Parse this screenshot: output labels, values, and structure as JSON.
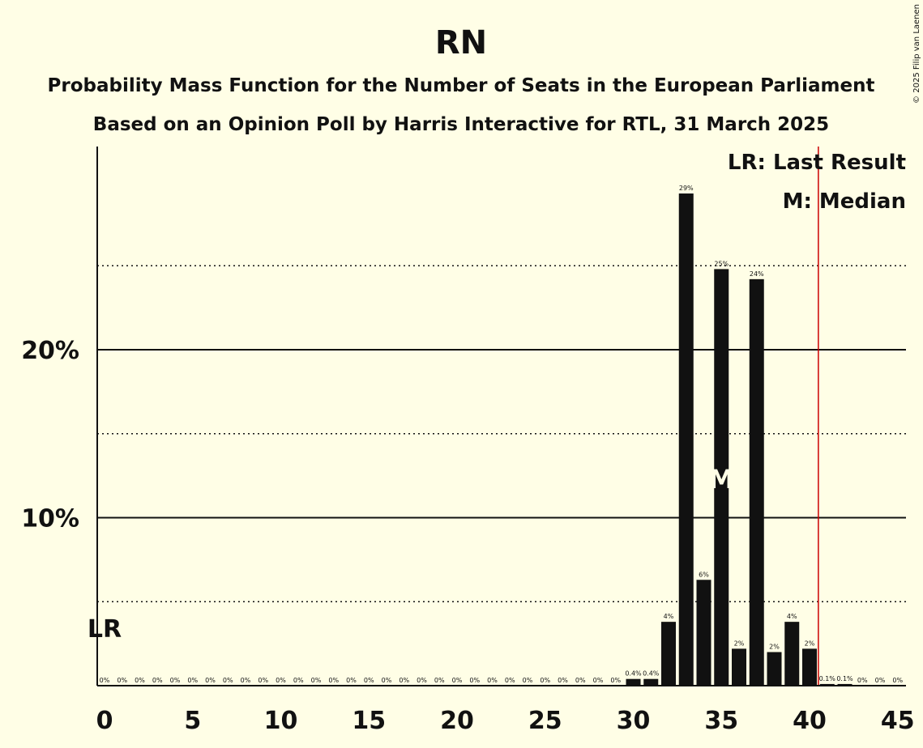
{
  "chart_data": {
    "type": "bar",
    "title": "RN",
    "subtitle": "Probability Mass Function for the Number of Seats in the European Parliament",
    "subtitle2": "Based on an Opinion Poll by Harris Interactive for RTL, 31 March 2025",
    "copyright": "© 2025 Filip van Laenen",
    "legend": [
      "LR: Last Result",
      "M: Median"
    ],
    "x": [
      0,
      1,
      2,
      3,
      4,
      5,
      6,
      7,
      8,
      9,
      10,
      11,
      12,
      13,
      14,
      15,
      16,
      17,
      18,
      19,
      20,
      21,
      22,
      23,
      24,
      25,
      26,
      27,
      28,
      29,
      30,
      31,
      32,
      33,
      34,
      35,
      36,
      37,
      38,
      39,
      40,
      41,
      42,
      43,
      44,
      45
    ],
    "values": [
      0,
      0,
      0,
      0,
      0,
      0,
      0,
      0,
      0,
      0,
      0,
      0,
      0,
      0,
      0,
      0,
      0,
      0,
      0,
      0,
      0,
      0,
      0,
      0,
      0,
      0,
      0,
      0,
      0,
      0,
      0.4,
      0.4,
      3.8,
      29.3,
      6.3,
      24.8,
      2.2,
      24.2,
      2.0,
      3.8,
      2.2,
      0.1,
      0.1,
      0,
      0,
      0
    ],
    "bar_labels": [
      "0%",
      "0%",
      "0%",
      "0%",
      "0%",
      "0%",
      "0%",
      "0%",
      "0%",
      "0%",
      "0%",
      "0%",
      "0%",
      "0%",
      "0%",
      "0%",
      "0%",
      "0%",
      "0%",
      "0%",
      "0%",
      "0%",
      "0%",
      "0%",
      "0%",
      "0%",
      "0%",
      "0%",
      "0%",
      "0%",
      "0.4%",
      "0.4%",
      "4%",
      "29%",
      "6%",
      "25%",
      "2%",
      "24%",
      "2%",
      "4%",
      "2%",
      "0.1%",
      "0.1%",
      "0%",
      "0%",
      "0%"
    ],
    "xticks": [
      0,
      5,
      10,
      15,
      20,
      25,
      30,
      35,
      40,
      45
    ],
    "yticks": [
      {
        "value": 10,
        "label": "10%"
      },
      {
        "value": 20,
        "label": "20%"
      }
    ],
    "ylim": [
      0,
      32
    ],
    "median": 35,
    "median_label": "M",
    "last_result": 0,
    "last_result_label": "LR",
    "majority_line": 40.5,
    "colors": {
      "bar": "#111111",
      "background": "#FFFEE6",
      "majority": "#CC0000"
    }
  }
}
